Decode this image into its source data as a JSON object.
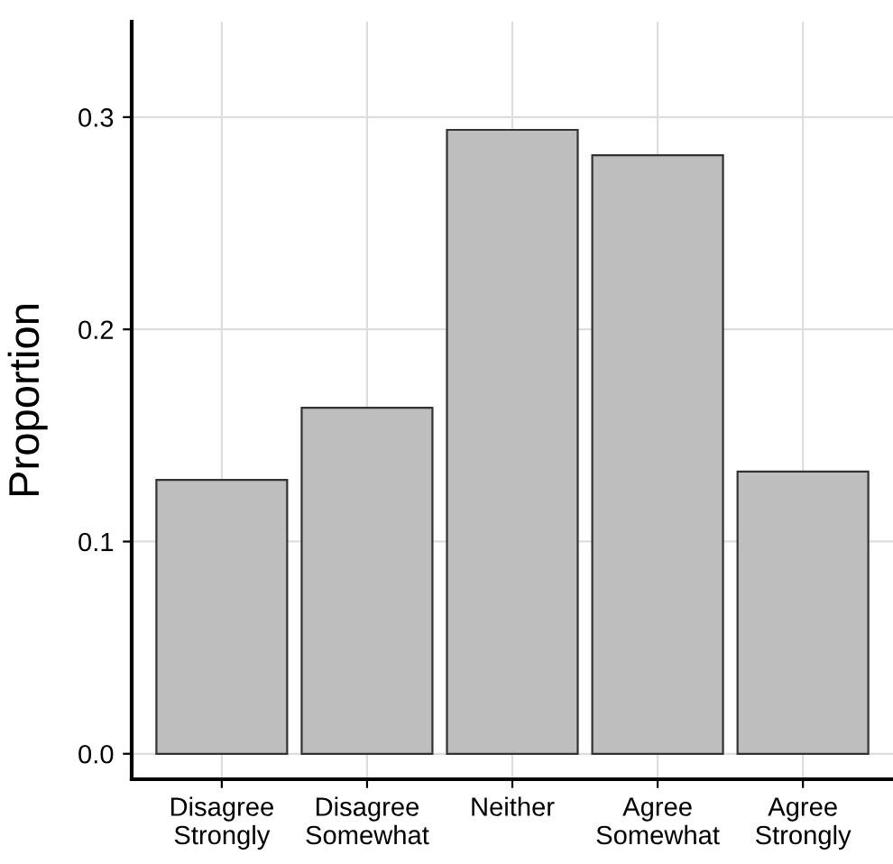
{
  "chart_data": {
    "type": "bar",
    "ylabel": "Proportion",
    "categories": [
      "Disagree\nStrongly",
      "Disagree\nSomewhat",
      "Neither",
      "Agree\nSomewhat",
      "Agree\nStrongly"
    ],
    "values": [
      0.129,
      0.163,
      0.294,
      0.282,
      0.133
    ],
    "color": "#bebebe",
    "ylim": [
      -0.012,
      0.345
    ],
    "yticks": [
      {
        "value": 0,
        "label": "0.0"
      },
      0.1,
      0.2,
      0.3
    ],
    "grid": true
  }
}
